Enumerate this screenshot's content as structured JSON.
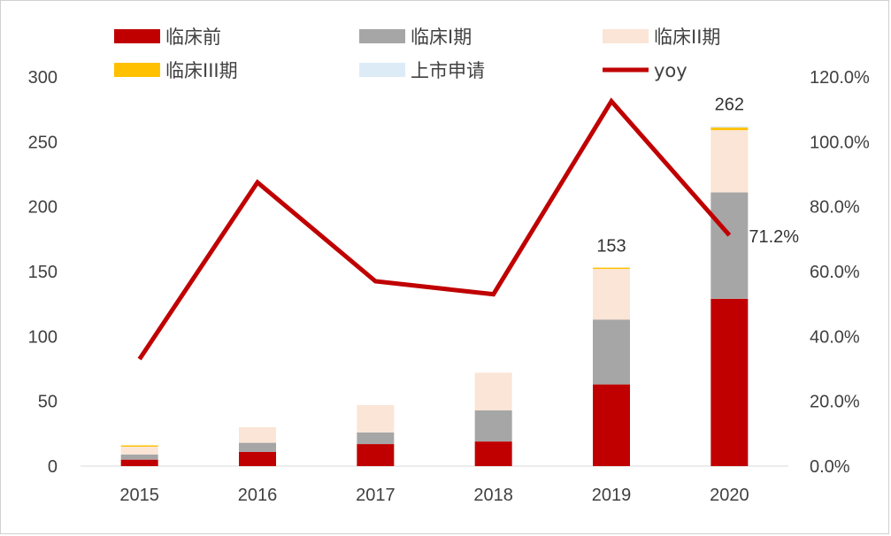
{
  "colors": {
    "preclinical": "#c00000",
    "phase1": "#a6a6a6",
    "phase2": "#fbe5d6",
    "phase3": "#ffc000",
    "nda": "#ddebf7",
    "yoy": "#c00000",
    "axis_text": "#404040"
  },
  "chart_data": {
    "type": "bar",
    "stacked": true,
    "title": "",
    "xlabel": "",
    "ylabel": "",
    "categories": [
      "2015",
      "2016",
      "2017",
      "2018",
      "2019",
      "2020"
    ],
    "ylim": [
      0,
      300
    ],
    "yticks": [
      "0",
      "50",
      "100",
      "150",
      "200",
      "250",
      "300"
    ],
    "y2lim": [
      0,
      120
    ],
    "y2ticks": [
      "0.0%",
      "20.0%",
      "40.0%",
      "60.0%",
      "80.0%",
      "100.0%",
      "120.0%"
    ],
    "grid": false,
    "legend_position": "top",
    "series": [
      {
        "name": "临床前",
        "key": "preclinical",
        "values": [
          5,
          11,
          17,
          19,
          63,
          129
        ]
      },
      {
        "name": "临床I期",
        "key": "phase1",
        "values": [
          4,
          7,
          9,
          24,
          50,
          82
        ]
      },
      {
        "name": "临床II期",
        "key": "phase2",
        "values": [
          6,
          12,
          21,
          29,
          39,
          48
        ]
      },
      {
        "name": "临床III期",
        "key": "phase3",
        "values": [
          1,
          0,
          0,
          0,
          1,
          2
        ]
      },
      {
        "name": "上市申请",
        "key": "nda",
        "values": [
          0,
          0,
          0,
          0,
          0,
          1
        ]
      }
    ],
    "line_series": {
      "name": "yoy",
      "key": "yoy",
      "axis": "right",
      "values": [
        33,
        87.5,
        57,
        53,
        112.5,
        71.2
      ]
    },
    "data_labels": [
      {
        "category": "2019",
        "text": "153"
      },
      {
        "category": "2020",
        "text": "262"
      },
      {
        "category": "2020",
        "text": "71.2%",
        "series": "yoy"
      }
    ]
  }
}
